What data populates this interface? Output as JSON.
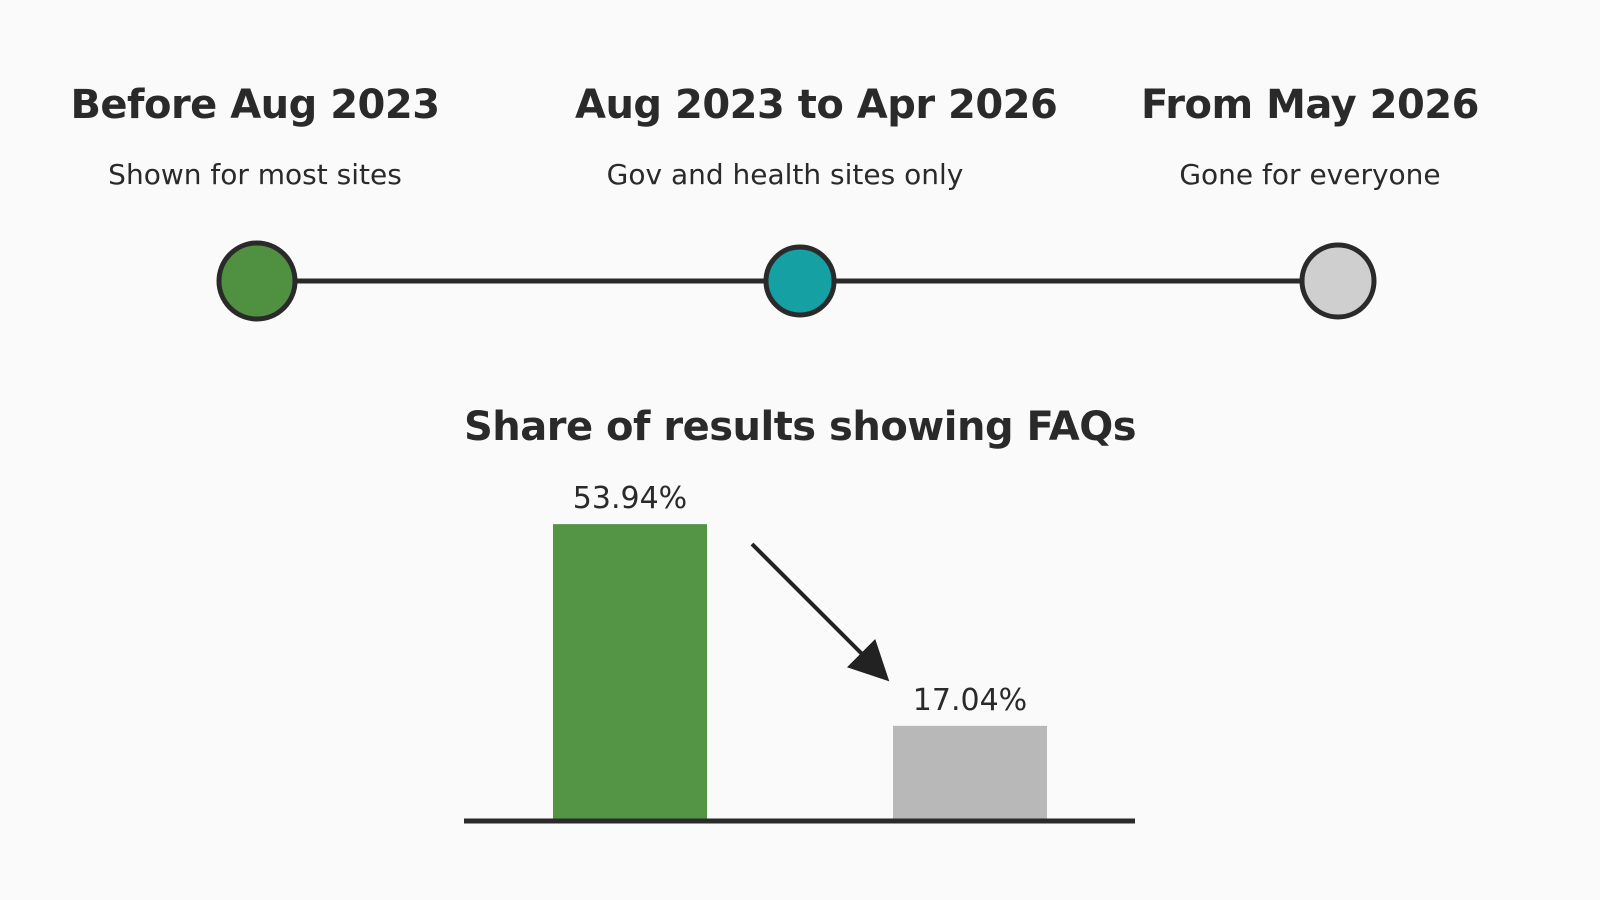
{
  "timeline": {
    "stages": [
      {
        "title": "Before Aug 2023",
        "description": "Shown for most sites",
        "color": "#4f9140"
      },
      {
        "title": "Aug 2023 to Apr 2026",
        "description": "Gov and health sites only",
        "color": "#15a0a4"
      },
      {
        "title": "From May 2026",
        "description": "Gone for everyone",
        "color": "#cfcfcf"
      }
    ]
  },
  "chart_data": {
    "type": "bar",
    "title": "Share of results showing FAQs",
    "categories": [
      "",
      ""
    ],
    "values": [
      53.94,
      17.04
    ],
    "data_labels": [
      "53.94%",
      "17.04%"
    ],
    "colors": [
      "#539445",
      "#b8b8b8"
    ],
    "ylim": [
      0,
      60
    ],
    "grid": false,
    "legend": "none",
    "annotation": "downward arrow from first bar to second bar"
  }
}
